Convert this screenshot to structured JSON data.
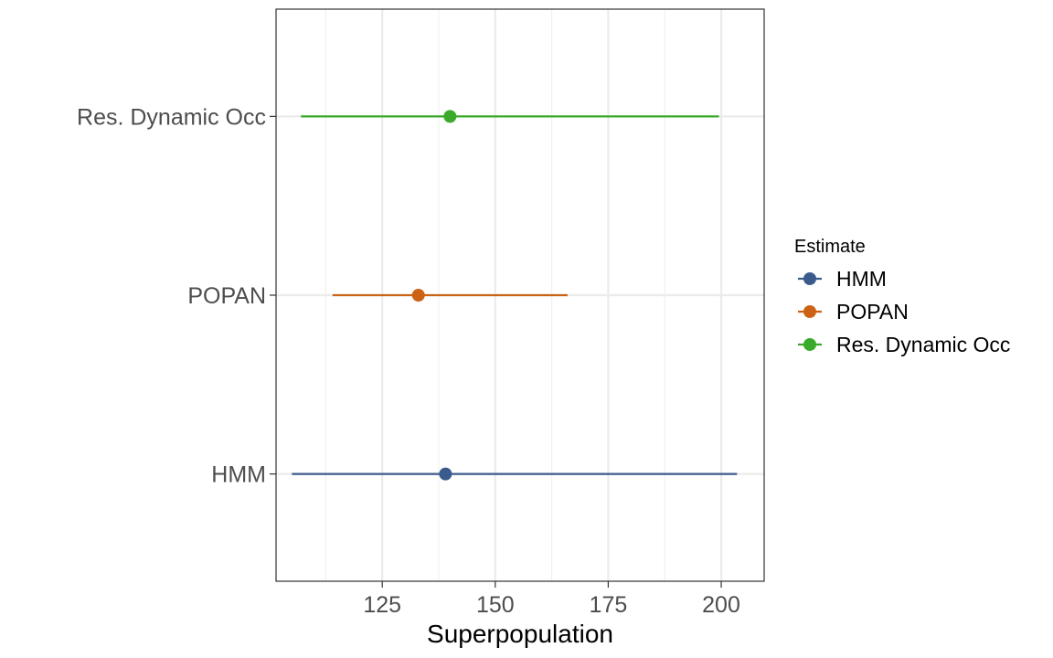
{
  "chart_data": {
    "type": "scatter",
    "subtype": "point-range",
    "title": "",
    "xlabel": "Superpopulation",
    "ylabel": "",
    "xlim": [
      101.5,
      209.5
    ],
    "x_ticks": [
      125,
      150,
      175,
      200
    ],
    "categories": [
      "HMM",
      "POPAN",
      "Res. Dynamic Occ"
    ],
    "grid": true,
    "legend": {
      "title": "Estimate",
      "position": "right"
    },
    "series": [
      {
        "name": "HMM",
        "estimate": 139,
        "lower": 105,
        "upper": 203.5,
        "color": "#3B5B8C"
      },
      {
        "name": "POPAN",
        "estimate": 133,
        "lower": 114,
        "upper": 166,
        "color": "#CC6314"
      },
      {
        "name": "Res. Dynamic Occ",
        "estimate": 140,
        "lower": 107,
        "upper": 199.5,
        "color": "#3AAA2A"
      }
    ]
  }
}
